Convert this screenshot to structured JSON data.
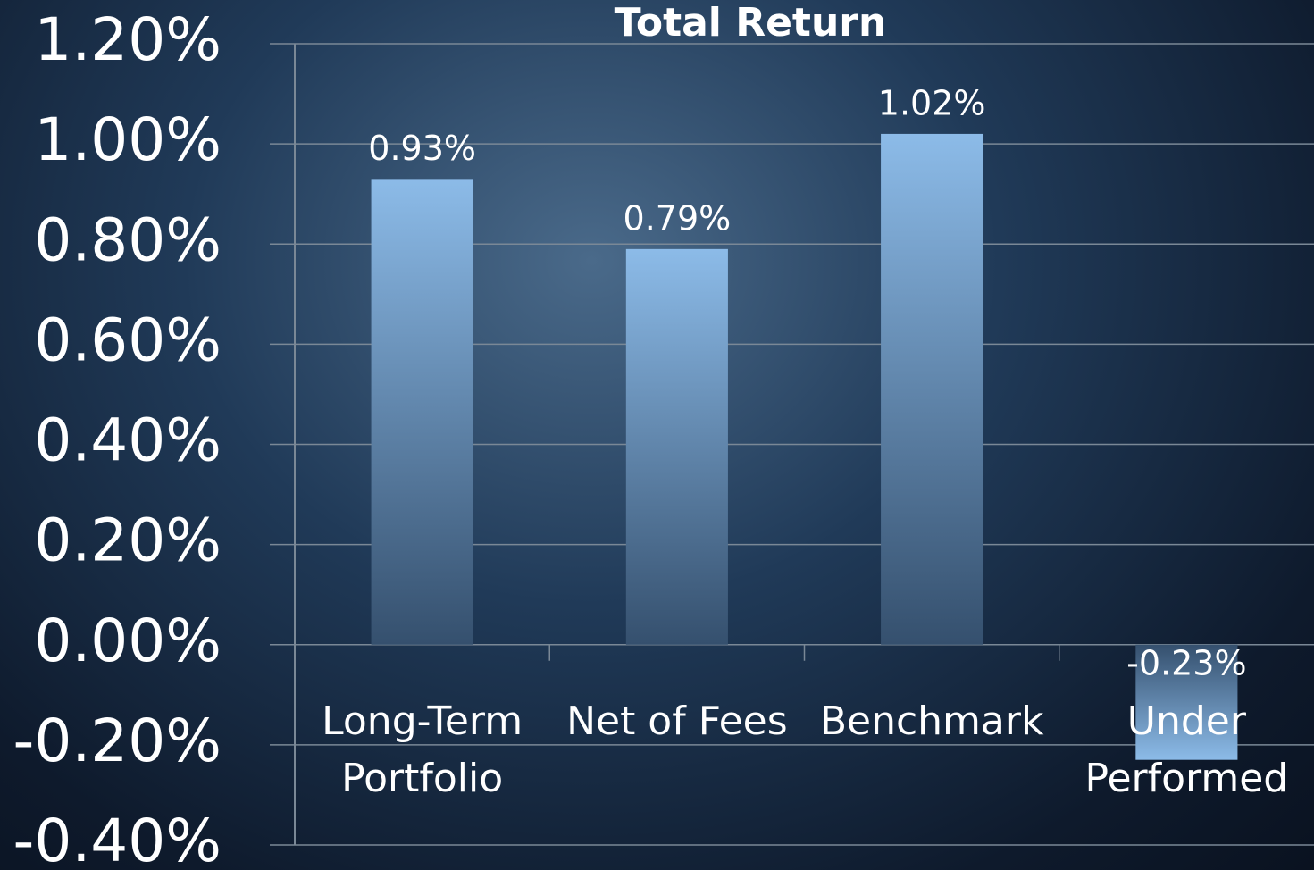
{
  "chart_data": {
    "type": "bar",
    "title": "Total Return",
    "categories": [
      "Long-Term Portfolio",
      "Net of Fees",
      "Benchmark",
      "Under Performed"
    ],
    "values": [
      0.93,
      0.79,
      1.02,
      -0.23
    ],
    "value_labels": [
      "0.93%",
      "0.79%",
      "1.02%",
      "-0.23%"
    ],
    "color": "#8cbbe8",
    "ylim": [
      -0.4,
      1.2
    ],
    "yticks": [
      {
        "value": -0.4,
        "label": "-0.40%"
      },
      {
        "value": -0.2,
        "label": "-0.20%"
      },
      {
        "value": 0,
        "label": "0.00%"
      },
      {
        "value": 0.2,
        "label": "0.20%"
      },
      {
        "value": 0.4,
        "label": "0.40%"
      },
      {
        "value": 0.6,
        "label": "0.60%"
      },
      {
        "value": 0.8,
        "label": "0.80%"
      },
      {
        "value": 1.0,
        "label": "1.00%"
      },
      {
        "value": 1.2,
        "label": "1.20%"
      }
    ],
    "grid": true
  }
}
